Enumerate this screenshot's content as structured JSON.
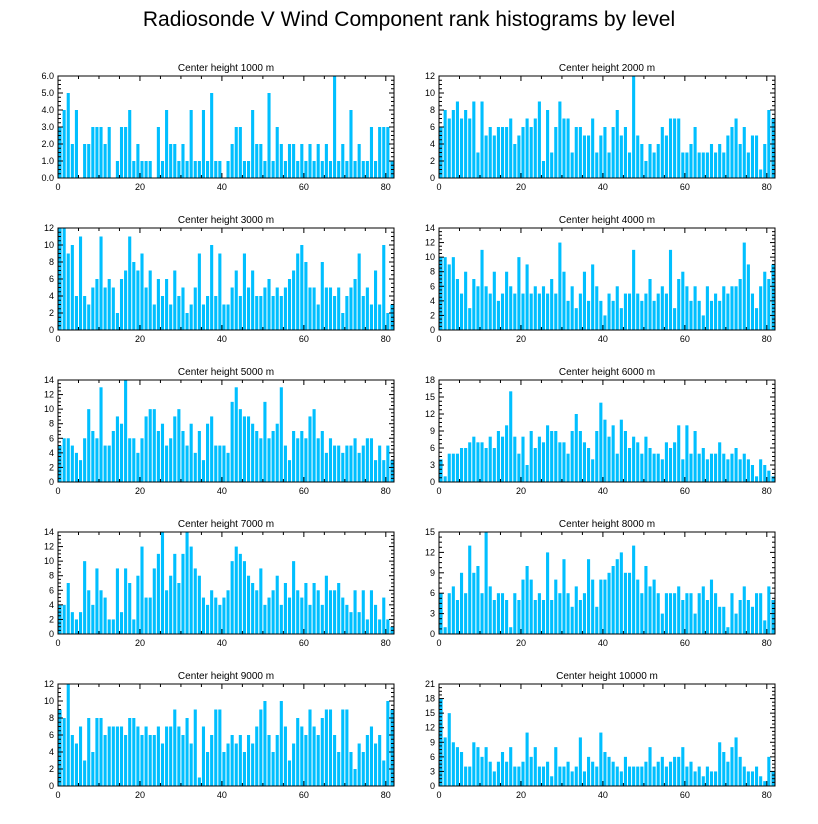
{
  "title": "Radiosonde V Wind Component rank histograms by level",
  "bar_color": "#00bfff",
  "chart_data": [
    {
      "type": "bar",
      "title": "Center height 1000 m",
      "xticks": [
        "0",
        "20",
        "40",
        "60",
        "80"
      ],
      "xlim": [
        0,
        82
      ],
      "ylim": [
        0,
        6
      ],
      "yticks": [
        "0.0",
        "1.0",
        "2.0",
        "3.0",
        "4.0",
        "5.0",
        "6.0"
      ],
      "values": [
        3,
        4,
        5,
        2,
        4,
        0,
        2,
        2,
        3,
        3,
        3,
        2,
        3,
        0,
        1,
        3,
        3,
        4,
        1,
        2,
        1,
        1,
        1,
        0,
        3,
        1,
        4,
        2,
        2,
        1,
        2,
        1,
        4,
        1,
        1,
        4,
        1,
        5,
        1,
        1,
        0,
        1,
        2,
        3,
        3,
        1,
        1,
        4,
        2,
        2,
        1,
        5,
        1,
        3,
        2,
        1,
        2,
        2,
        1,
        2,
        1,
        2,
        1,
        2,
        1,
        2,
        1,
        6,
        1,
        2,
        1,
        4,
        1,
        2,
        1,
        1,
        3,
        1,
        3,
        3,
        3,
        1
      ]
    },
    {
      "type": "bar",
      "title": "Center height 2000 m",
      "xticks": [
        "0",
        "20",
        "40",
        "60",
        "80"
      ],
      "xlim": [
        0,
        82
      ],
      "ylim": [
        0,
        12
      ],
      "yticks": [
        "0",
        "2",
        "4",
        "6",
        "8",
        "10",
        "12"
      ],
      "values": [
        6,
        8,
        7,
        8,
        9,
        7,
        8,
        7,
        9,
        3,
        9,
        5,
        6,
        5,
        6,
        6,
        6,
        7,
        4,
        5,
        6,
        7,
        6,
        7,
        9,
        2,
        8,
        3,
        6,
        9,
        7,
        7,
        3,
        6,
        6,
        5,
        5,
        7,
        3,
        5,
        6,
        3,
        6,
        8,
        5,
        6,
        3,
        12,
        5,
        4,
        2,
        4,
        3,
        4,
        6,
        5,
        7,
        7,
        7,
        3,
        3,
        4,
        6,
        3,
        3,
        3,
        4,
        3,
        4,
        3,
        5,
        6,
        7,
        4,
        6,
        3,
        5,
        5,
        1,
        4,
        8,
        7
      ]
    },
    {
      "type": "bar",
      "title": "Center height 3000 m",
      "xticks": [
        "0",
        "20",
        "40",
        "60",
        "80"
      ],
      "xlim": [
        0,
        82
      ],
      "ylim": [
        0,
        12
      ],
      "yticks": [
        "0",
        "2",
        "4",
        "6",
        "8",
        "10",
        "12"
      ],
      "values": [
        12,
        12,
        9,
        10,
        4,
        11,
        4,
        3,
        5,
        6,
        11,
        5,
        6,
        5,
        2,
        6,
        7,
        11,
        8,
        7,
        9,
        5,
        7,
        3,
        6,
        4,
        6,
        3,
        7,
        4,
        5,
        2,
        3,
        5,
        9,
        3,
        4,
        10,
        4,
        9,
        3,
        3,
        5,
        7,
        4,
        9,
        5,
        7,
        4,
        4,
        5,
        6,
        4,
        5,
        4,
        5,
        6,
        7,
        9,
        10,
        8,
        5,
        5,
        3,
        8,
        5,
        5,
        4,
        5,
        2,
        4,
        5,
        6,
        9,
        4,
        5,
        3,
        7,
        3,
        10,
        2,
        3
      ]
    },
    {
      "type": "bar",
      "title": "Center height 4000 m",
      "xticks": [
        "0",
        "20",
        "40",
        "60",
        "80"
      ],
      "xlim": [
        0,
        82
      ],
      "ylim": [
        0,
        14
      ],
      "yticks": [
        "0",
        "2",
        "4",
        "6",
        "8",
        "10",
        "12",
        "14"
      ],
      "values": [
        10,
        10,
        9,
        10,
        7,
        5,
        8,
        3,
        7,
        6,
        11,
        6,
        5,
        8,
        4,
        5,
        8,
        6,
        5,
        10,
        5,
        9,
        5,
        6,
        5,
        6,
        5,
        7,
        5,
        12,
        8,
        4,
        6,
        3,
        5,
        8,
        4,
        9,
        6,
        4,
        2,
        5,
        4,
        6,
        3,
        5,
        5,
        11,
        5,
        4,
        5,
        7,
        4,
        5,
        6,
        5,
        11,
        3,
        7,
        8,
        6,
        4,
        6,
        4,
        2,
        6,
        4,
        5,
        4,
        6,
        5,
        6,
        6,
        7,
        12,
        9,
        5,
        3,
        6,
        8,
        7,
        9
      ]
    },
    {
      "type": "bar",
      "title": "Center height 5000 m",
      "xticks": [
        "0",
        "20",
        "40",
        "60",
        "80"
      ],
      "xlim": [
        0,
        82
      ],
      "ylim": [
        0,
        14
      ],
      "yticks": [
        "0",
        "2",
        "4",
        "6",
        "8",
        "10",
        "12",
        "14"
      ],
      "values": [
        5,
        6,
        6,
        5,
        4,
        3,
        6,
        10,
        7,
        6,
        13,
        5,
        5,
        7,
        9,
        8,
        14,
        6,
        6,
        4,
        6,
        9,
        10,
        10,
        7,
        8,
        5,
        6,
        9,
        10,
        7,
        5,
        8,
        4,
        7,
        3,
        8,
        9,
        5,
        5,
        5,
        4,
        11,
        13,
        10,
        9,
        9,
        8,
        7,
        6,
        11,
        6,
        7,
        8,
        13,
        5,
        3,
        7,
        6,
        7,
        6,
        9,
        10,
        6,
        7,
        4,
        6,
        5,
        5,
        4,
        5,
        5,
        6,
        4,
        5,
        6,
        6,
        3,
        5,
        3,
        5,
        3
      ]
    },
    {
      "type": "bar",
      "title": "Center height 6000 m",
      "xticks": [
        "0",
        "20",
        "40",
        "60",
        "80"
      ],
      "xlim": [
        0,
        82
      ],
      "ylim": [
        0,
        18
      ],
      "yticks": [
        "0",
        "3",
        "6",
        "9",
        "12",
        "15",
        "18"
      ],
      "values": [
        4,
        1,
        5,
        5,
        5,
        6,
        6,
        7,
        8,
        7,
        7,
        6,
        8,
        6,
        9,
        8,
        10,
        16,
        8,
        5,
        8,
        3,
        9,
        6,
        8,
        7,
        10,
        9,
        9,
        7,
        7,
        5,
        9,
        12,
        9,
        7,
        6,
        4,
        9,
        14,
        11,
        8,
        10,
        5,
        11,
        9,
        6,
        8,
        7,
        5,
        8,
        6,
        5,
        5,
        4,
        7,
        6,
        7,
        10,
        4,
        10,
        5,
        9,
        5,
        6,
        4,
        5,
        5,
        7,
        5,
        4,
        5,
        6,
        4,
        5,
        4,
        3,
        1,
        4,
        3,
        2,
        1
      ]
    },
    {
      "type": "bar",
      "title": "Center height 7000 m",
      "xticks": [
        "0",
        "20",
        "40",
        "60",
        "80"
      ],
      "xlim": [
        0,
        82
      ],
      "ylim": [
        0,
        14
      ],
      "yticks": [
        "0",
        "2",
        "4",
        "6",
        "8",
        "10",
        "12",
        "14"
      ],
      "values": [
        4,
        4,
        7,
        3,
        2,
        3,
        10,
        6,
        4,
        9,
        6,
        5,
        2,
        2,
        9,
        3,
        9,
        7,
        2,
        8,
        12,
        5,
        5,
        9,
        11,
        14,
        6,
        8,
        11,
        7,
        11,
        14,
        12,
        9,
        8,
        5,
        4,
        6,
        5,
        4,
        5,
        6,
        10,
        12,
        11,
        10,
        8,
        7,
        6,
        9,
        4,
        5,
        6,
        8,
        4,
        7,
        5,
        10,
        6,
        5,
        7,
        4,
        7,
        6,
        4,
        8,
        6,
        6,
        7,
        5,
        4,
        3,
        6,
        3,
        6,
        2,
        6,
        4,
        2,
        5,
        2,
        1
      ]
    },
    {
      "type": "bar",
      "title": "Center height 8000 m",
      "xticks": [
        "0",
        "20",
        "40",
        "60",
        "80"
      ],
      "xlim": [
        0,
        82
      ],
      "ylim": [
        0,
        15
      ],
      "yticks": [
        "0",
        "3",
        "6",
        "9",
        "12",
        "15"
      ],
      "values": [
        6,
        1,
        6,
        7,
        5,
        9,
        6,
        13,
        9,
        10,
        6,
        15,
        7,
        5,
        6,
        6,
        5,
        1,
        6,
        5,
        8,
        10,
        8,
        5,
        6,
        5,
        12,
        5,
        8,
        6,
        11,
        6,
        4,
        7,
        5,
        6,
        11,
        8,
        4,
        8,
        8,
        9,
        10,
        11,
        12,
        9,
        9,
        13,
        8,
        6,
        10,
        7,
        8,
        6,
        3,
        6,
        6,
        6,
        7,
        5,
        6,
        6,
        3,
        6,
        7,
        5,
        8,
        6,
        4,
        4,
        1,
        6,
        3,
        5,
        7,
        5,
        4,
        6,
        6,
        2,
        7,
        5
      ]
    },
    {
      "type": "bar",
      "title": "Center height 9000 m",
      "xticks": [
        "0",
        "20",
        "40",
        "60",
        "80"
      ],
      "xlim": [
        0,
        82
      ],
      "ylim": [
        0,
        12
      ],
      "yticks": [
        "0",
        "2",
        "4",
        "6",
        "8",
        "10",
        "12"
      ],
      "values": [
        9,
        8,
        12,
        6,
        5,
        7,
        3,
        8,
        4,
        8,
        8,
        6,
        7,
        7,
        7,
        7,
        6,
        8,
        8,
        7,
        6,
        7,
        6,
        6,
        7,
        5,
        7,
        7,
        9,
        7,
        6,
        8,
        5,
        9,
        1,
        7,
        4,
        6,
        9,
        9,
        4,
        5,
        6,
        5,
        6,
        4,
        6,
        5,
        7,
        9,
        10,
        6,
        4,
        6,
        10,
        7,
        3,
        5,
        8,
        7,
        6,
        9,
        7,
        6,
        8,
        9,
        9,
        6,
        4,
        9,
        9,
        4,
        2,
        5,
        4,
        6,
        7,
        5,
        6,
        3,
        10,
        9
      ]
    },
    {
      "type": "bar",
      "title": "Center height 10000 m",
      "xticks": [
        "0",
        "20",
        "40",
        "60",
        "80"
      ],
      "xlim": [
        0,
        82
      ],
      "ylim": [
        0,
        21
      ],
      "yticks": [
        "0",
        "3",
        "6",
        "9",
        "12",
        "15",
        "18",
        "21"
      ],
      "values": [
        18,
        10,
        15,
        9,
        8,
        7,
        4,
        4,
        9,
        8,
        6,
        8,
        5,
        3,
        5,
        7,
        5,
        8,
        4,
        4,
        5,
        11,
        6,
        8,
        4,
        4,
        5,
        2,
        8,
        4,
        4,
        5,
        3,
        4,
        10,
        3,
        6,
        5,
        4,
        11,
        7,
        6,
        5,
        4,
        3,
        6,
        4,
        4,
        4,
        4,
        5,
        8,
        4,
        5,
        6,
        4,
        5,
        6,
        6,
        8,
        4,
        5,
        3,
        4,
        2,
        4,
        3,
        3,
        9,
        7,
        5,
        8,
        10,
        6,
        4,
        3,
        3,
        4,
        2,
        1,
        6,
        3
      ]
    }
  ]
}
